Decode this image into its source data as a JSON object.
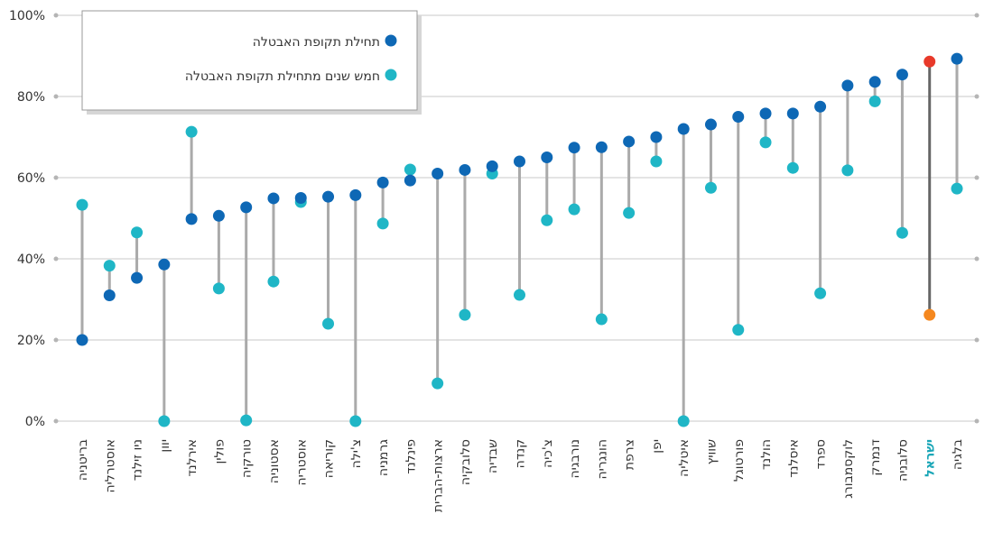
{
  "chart_data": {
    "type": "dumbbell",
    "categories": [
      "בריטניה",
      "אוסטרליה",
      "ניו זילנד",
      "יוון",
      "אירלנד",
      "פולין",
      "טורקיה",
      "אסטוניה",
      "אוסטריה",
      "קוריאה",
      "צ'ילה",
      "גרמניה",
      "פינלנד",
      "ארצות-הברית",
      "סלובקיה",
      "שבדיה",
      "קנדה",
      "צ'כיה",
      "נורבגיה",
      "הונגריה",
      "צרפת",
      "יפן",
      "איטליה",
      "שוויץ",
      "פורטוגל",
      "הולנד",
      "איסלנד",
      "ספרד",
      "לוקסמבורג",
      "דנמרק",
      "סלובניה",
      "ישראל",
      "בלגיה"
    ],
    "series": [
      {
        "name": "תחילת תקופת האבטלה",
        "color": "#0e68b5",
        "values": [
          20,
          31,
          35.3,
          38.6,
          49.8,
          50.6,
          52.7,
          54.9,
          55,
          55.3,
          55.7,
          58.8,
          59.3,
          61,
          61.9,
          62.8,
          64,
          65,
          67.4,
          67.5,
          68.9,
          70,
          72,
          73.1,
          75,
          75.8,
          75.8,
          77.5,
          82.7,
          83.6,
          85.4,
          88.6,
          89.3
        ]
      },
      {
        "name": "חמש שנים מתחילת תקופת האבטלה",
        "color": "#1fb6c6",
        "values": [
          53.3,
          38.3,
          46.5,
          0,
          71.3,
          32.7,
          0.2,
          34.4,
          54,
          24,
          0,
          48.7,
          62,
          9.3,
          26.2,
          61,
          31.1,
          49.5,
          52.2,
          25.1,
          51.3,
          64,
          0,
          57.5,
          22.5,
          68.7,
          62.4,
          31.5,
          61.8,
          78.8,
          46.4,
          26.2,
          57.3
        ]
      }
    ],
    "highlight": {
      "category": "ישראל",
      "colors": [
        "#e8392a",
        "#f5881f"
      ],
      "line_color": "#666666",
      "label_color": "#1aa6b7"
    },
    "ylim": [
      0,
      100
    ],
    "yticks": [
      {
        "value": 0,
        "label": "0%"
      },
      {
        "value": 20,
        "label": "20%"
      },
      {
        "value": 40,
        "label": "40%"
      },
      {
        "value": 60,
        "label": "60%"
      },
      {
        "value": 80,
        "label": "80%"
      },
      {
        "value": 100,
        "label": "100%"
      }
    ],
    "grid": true,
    "legend": "top-left"
  }
}
